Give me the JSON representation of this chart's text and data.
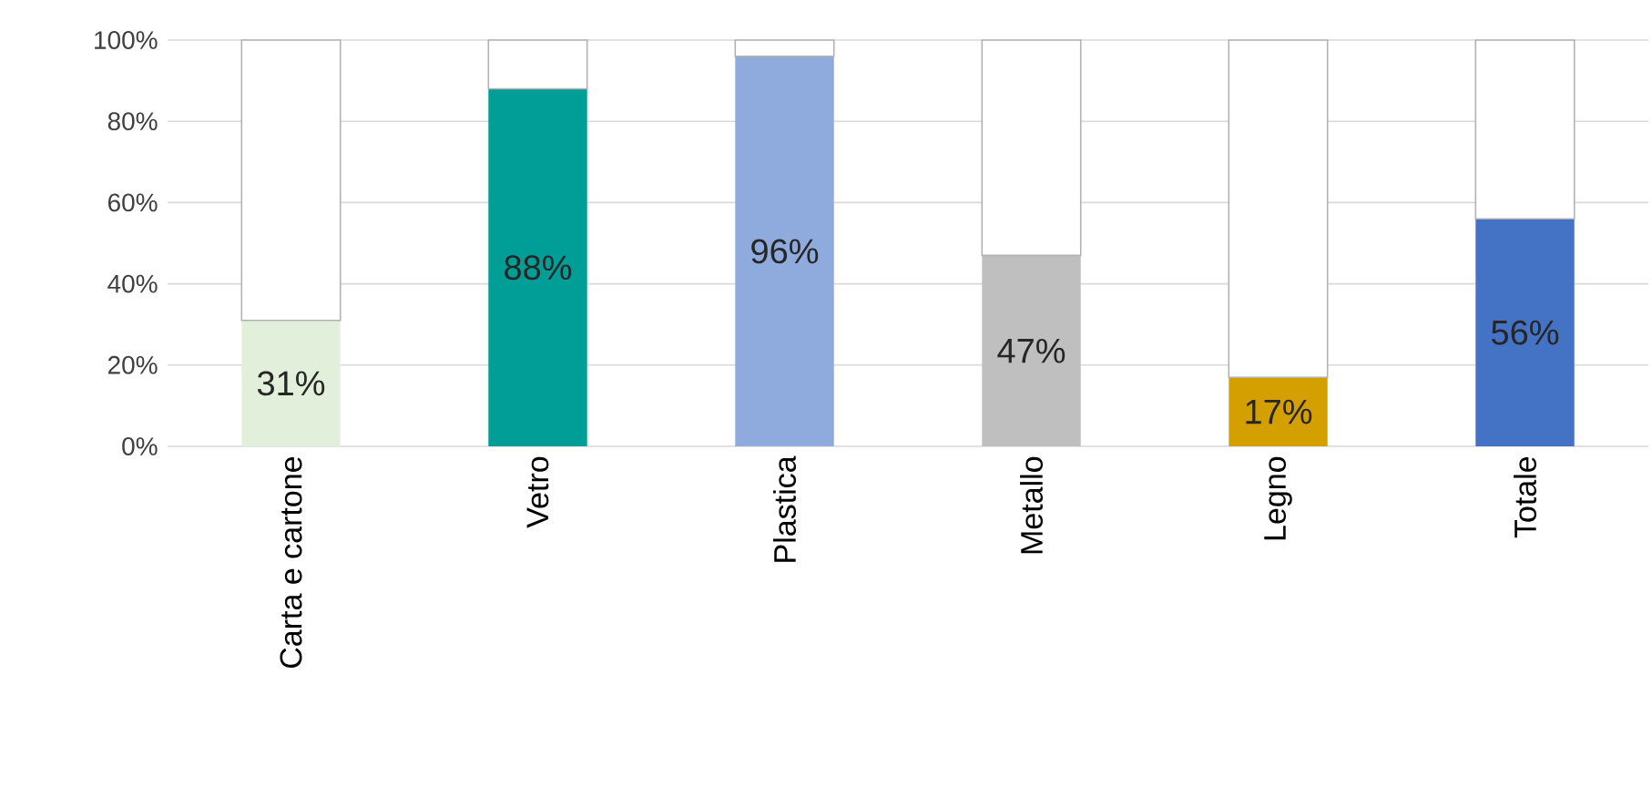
{
  "chart_data": {
    "type": "bar",
    "stacked": true,
    "categories": [
      "Carta e cartone",
      "Vetro",
      "Plastica",
      "Metallo",
      "Legno",
      "Totale"
    ],
    "series": [
      {
        "colors": [
          "#e2efda",
          "#009e96",
          "#8faadc",
          "#bfbfbf",
          "#d4a000",
          "#4472c4"
        ],
        "values": [
          31,
          88,
          96,
          47,
          17,
          56
        ],
        "value_labels": [
          "31%",
          "88%",
          "96%",
          "47%",
          "17%",
          "56%"
        ]
      },
      {
        "color": "#ffffff",
        "values": [
          69,
          12,
          4,
          53,
          83,
          44
        ]
      }
    ],
    "ylim": [
      0,
      100
    ],
    "yticks": [
      {
        "value": 0,
        "label": "0%"
      },
      {
        "value": 20,
        "label": "20%"
      },
      {
        "value": 40,
        "label": "40%"
      },
      {
        "value": 60,
        "label": "60%"
      },
      {
        "value": 80,
        "label": "80%"
      },
      {
        "value": 100,
        "label": "100%"
      }
    ],
    "grid": "y"
  }
}
